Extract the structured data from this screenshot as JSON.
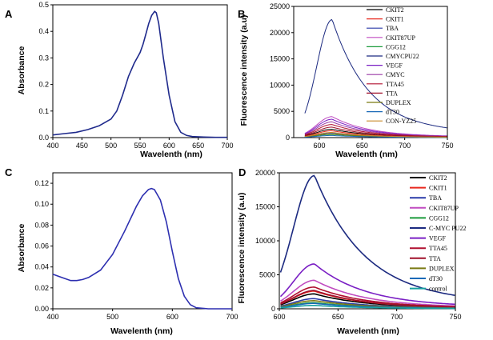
{
  "figure": {
    "colors": {
      "CKIT2": "#000000",
      "CKIT1": "#e8281e",
      "TBA": "#2a3aa8",
      "CKIT87UP": "#c04cc0",
      "CGG12": "#1a9a3a",
      "CMYCPU22": "#1c2a80",
      "C-MYC PU22": "#1c2a80",
      "VEGF": "#7a1fc4",
      "CMYC": "#9a3aa6",
      "TTA45": "#b01030",
      "TTA": "#a0102a",
      "DUPLEX": "#7a7a12",
      "dT30": "#1a6ab8",
      "CON-YZ25": "#c88a2a",
      "control": "#17a0a0"
    }
  },
  "chart_data": [
    {
      "panel": "A",
      "type": "line",
      "title": "",
      "xlabel": "Wavelenth (nm)",
      "ylabel": "Absorbance",
      "xlim": [
        400,
        700
      ],
      "ylim": [
        0,
        0.5
      ],
      "xticks": [
        "400",
        "450",
        "500",
        "550",
        "600",
        "650",
        "700"
      ],
      "yticks": [
        "0.0",
        "0.1",
        "0.2",
        "0.3",
        "0.4",
        "0.5"
      ],
      "series": [
        {
          "name": "absorbance",
          "color": "#1f2a8c",
          "x": [
            400,
            420,
            440,
            460,
            480,
            500,
            510,
            520,
            530,
            540,
            550,
            555,
            560,
            565,
            570,
            575,
            578,
            582,
            590,
            600,
            610,
            620,
            630,
            640,
            660,
            680,
            700
          ],
          "y": [
            0.01,
            0.015,
            0.02,
            0.03,
            0.045,
            0.07,
            0.1,
            0.16,
            0.23,
            0.28,
            0.32,
            0.35,
            0.39,
            0.43,
            0.46,
            0.475,
            0.47,
            0.43,
            0.3,
            0.16,
            0.06,
            0.02,
            0.008,
            0.004,
            0.002,
            0.001,
            0.001
          ]
        }
      ]
    },
    {
      "panel": "B",
      "type": "line",
      "title": "",
      "xlabel": "Wavelenth (nm)",
      "ylabel": "Fluorescence intensity (a.u)",
      "xlim": [
        570,
        750
      ],
      "ylim": [
        0,
        25000
      ],
      "xticks": [
        "600",
        "650",
        "700",
        "750"
      ],
      "yticks": [
        "0",
        "5000",
        "10000",
        "15000",
        "20000",
        "25000"
      ],
      "legend_position": "top-right",
      "peak": 615,
      "series": [
        {
          "name": "CKIT2",
          "peak_value": 1600
        },
        {
          "name": "CKIT1",
          "peak_value": 1300
        },
        {
          "name": "TBA",
          "peak_value": 900
        },
        {
          "name": "CKIT87UP",
          "peak_value": 4000
        },
        {
          "name": "CGG12",
          "peak_value": 600
        },
        {
          "name": "CMYCPU22",
          "peak_value": 22500
        },
        {
          "name": "VEGF",
          "peak_value": 3500
        },
        {
          "name": "CMYC",
          "peak_value": 3000
        },
        {
          "name": "TTA45",
          "peak_value": 2500
        },
        {
          "name": "TTA",
          "peak_value": 2000
        },
        {
          "name": "DUPLEX",
          "peak_value": 700
        },
        {
          "name": "dT30",
          "peak_value": 400
        },
        {
          "name": "CON-YZ25",
          "peak_value": 1000
        }
      ]
    },
    {
      "panel": "C",
      "type": "line",
      "title": "",
      "xlabel": "Wavelenth (nm)",
      "ylabel": "Absorbance",
      "xlim": [
        400,
        700
      ],
      "ylim": [
        0,
        0.13
      ],
      "xticks": [
        "400",
        "500",
        "600",
        "700"
      ],
      "yticks": [
        "0.00",
        "0.02",
        "0.04",
        "0.06",
        "0.08",
        "0.10",
        "0.12"
      ],
      "series": [
        {
          "name": "absorbance",
          "color": "#2d2fb0",
          "x": [
            400,
            410,
            420,
            430,
            440,
            450,
            460,
            480,
            500,
            520,
            540,
            550,
            560,
            565,
            570,
            580,
            590,
            600,
            610,
            620,
            630,
            640,
            660,
            700
          ],
          "y": [
            0.033,
            0.031,
            0.029,
            0.027,
            0.027,
            0.028,
            0.03,
            0.037,
            0.052,
            0.074,
            0.098,
            0.108,
            0.114,
            0.115,
            0.114,
            0.104,
            0.083,
            0.055,
            0.029,
            0.012,
            0.004,
            0.001,
            0.0,
            0.0
          ]
        }
      ]
    },
    {
      "panel": "D",
      "type": "line",
      "title": "",
      "xlabel": "Wavelenth (nm)",
      "ylabel": "Fluorescence intensity (a.u)",
      "xlim": [
        600,
        750
      ],
      "ylim": [
        0,
        20000
      ],
      "xticks": [
        "600",
        "650",
        "700",
        "750"
      ],
      "yticks": [
        "0",
        "5000",
        "10000",
        "15000",
        "20000"
      ],
      "legend_position": "top-right",
      "peak": 630,
      "series": [
        {
          "name": "CKIT2",
          "peak_value": 2200
        },
        {
          "name": "CKIT1",
          "peak_value": 2600
        },
        {
          "name": "TBA",
          "peak_value": 1500
        },
        {
          "name": "CKIT87UP",
          "peak_value": 4200
        },
        {
          "name": "CGG12",
          "peak_value": 900
        },
        {
          "name": "C-MYC PU22",
          "peak_value": 19600
        },
        {
          "name": "VEGF",
          "peak_value": 6600
        },
        {
          "name": "TTA45",
          "peak_value": 3200
        },
        {
          "name": "TTA",
          "peak_value": 2700
        },
        {
          "name": "DUPLEX",
          "peak_value": 1200
        },
        {
          "name": "dT30",
          "peak_value": 800
        },
        {
          "name": "control",
          "peak_value": 500
        }
      ]
    }
  ]
}
